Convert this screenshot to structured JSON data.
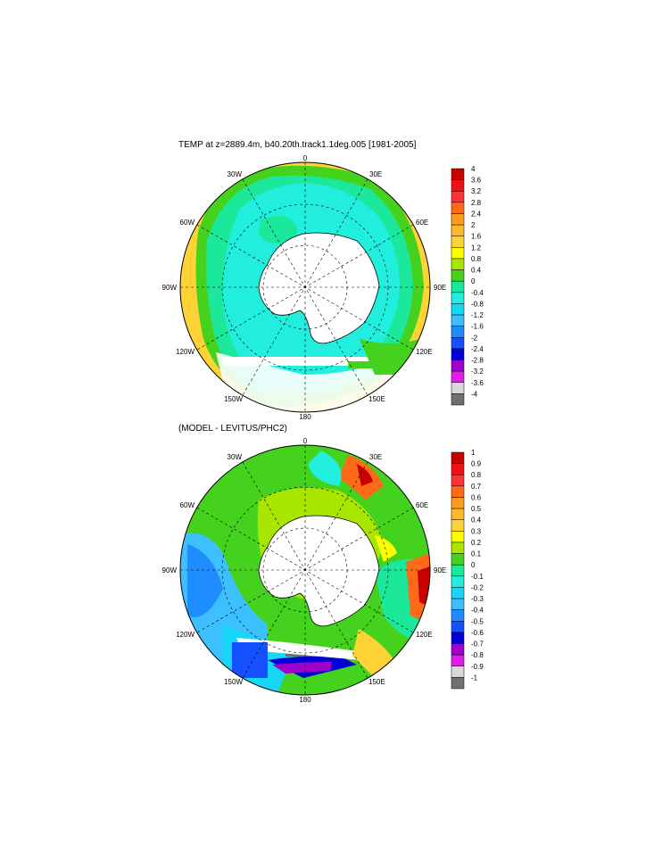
{
  "panels": [
    {
      "title": "TEMP at z=2889.4m, b40.20th.track1.1deg.005 [1981-2005]",
      "lon_labels": [
        "0",
        "30E",
        "60E",
        "90E",
        "120E",
        "150E",
        "180",
        "150W",
        "120W",
        "90W",
        "60W",
        "30W"
      ],
      "colorbar": {
        "labels": [
          "4",
          "3.6",
          "3.2",
          "2.8",
          "2.4",
          "2",
          "1.6",
          "1.2",
          "0.8",
          "0.4",
          "0",
          "-0.4",
          "-0.8",
          "-1.2",
          "-1.6",
          "-2",
          "-2.4",
          "-2.8",
          "-3.2",
          "-3.6",
          "-4"
        ],
        "colors": [
          "#c80000",
          "#ee1111",
          "#ff3333",
          "#ff6a1a",
          "#ff9a1e",
          "#ffb928",
          "#ffd236",
          "#ffff00",
          "#a8e600",
          "#45d21e",
          "#1be89a",
          "#21eedc",
          "#17d7f7",
          "#3cc0ff",
          "#1f8cff",
          "#1450ff",
          "#0000d4",
          "#a000cc",
          "#e01ee8",
          "#d8d8d8",
          "#707070"
        ]
      }
    },
    {
      "title": "(MODEL - LEVITUS/PHC2)",
      "lon_labels": [
        "0",
        "30E",
        "60E",
        "90E",
        "120E",
        "150E",
        "180",
        "150W",
        "120W",
        "90W",
        "60W",
        "30W"
      ],
      "colorbar": {
        "labels": [
          "1",
          "0.9",
          "0.8",
          "0.7",
          "0.6",
          "0.5",
          "0.4",
          "0.3",
          "0.2",
          "0.1",
          "0",
          "-0.1",
          "-0.2",
          "-0.3",
          "-0.4",
          "-0.5",
          "-0.6",
          "-0.7",
          "-0.8",
          "-0.9",
          "-1"
        ],
        "colors": [
          "#c80000",
          "#ee1111",
          "#ff3333",
          "#ff6a1a",
          "#ff9a1e",
          "#ffb928",
          "#ffd236",
          "#ffff00",
          "#a8e600",
          "#45d21e",
          "#1be89a",
          "#21eedc",
          "#17d7f7",
          "#3cc0ff",
          "#1f8cff",
          "#1450ff",
          "#0000d4",
          "#a000cc",
          "#e01ee8",
          "#d8d8d8",
          "#707070"
        ]
      }
    }
  ]
}
